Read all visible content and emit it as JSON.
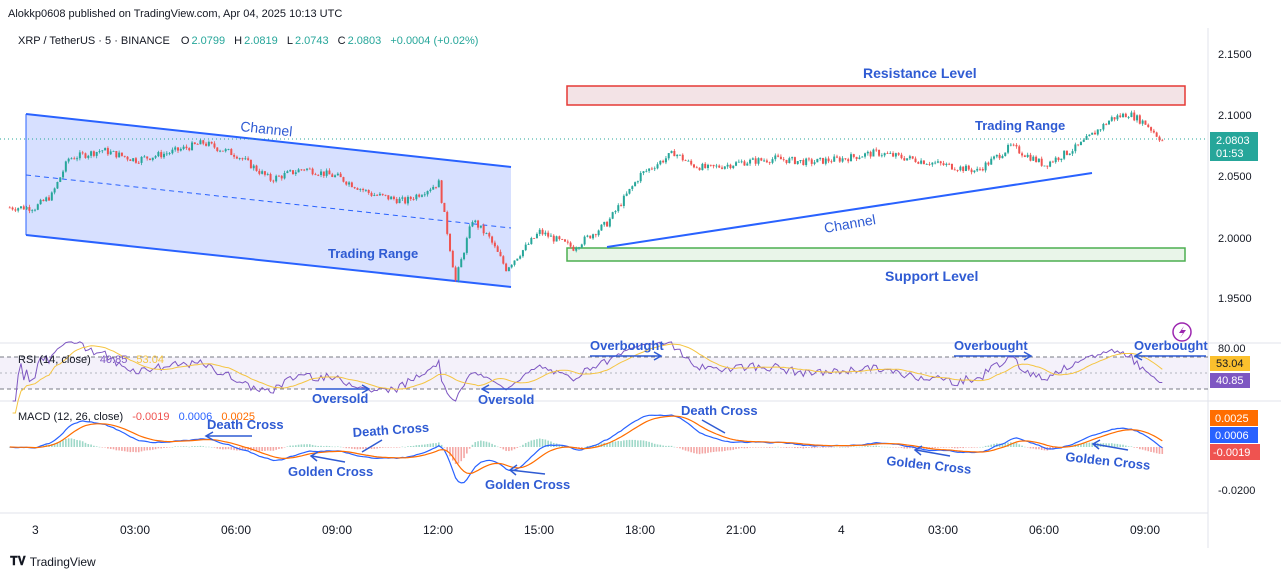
{
  "attribution": "Alokkp0608 published on TradingView.com, Apr 04, 2025 10:13 UTC",
  "symbol_line": {
    "symbol": "XRP / TetherUS · 5 · BINANCE",
    "o_label": "O",
    "o": "2.0799",
    "h_label": "H",
    "h": "2.0819",
    "l_label": "L",
    "l": "2.0743",
    "c_label": "C",
    "c": "2.0803",
    "change": "+0.0004 (+0.02%)"
  },
  "rsi_legend": {
    "label": "RSI (14, close)",
    "v1": "40.85",
    "v2": "53.04"
  },
  "macd_legend": {
    "label": "MACD (12, 26, close)",
    "v1": "-0.0019",
    "v2": "0.0006",
    "v3": "0.0025"
  },
  "brand": "TradingView",
  "colors": {
    "up": "#26a69a",
    "down": "#ef5350",
    "blue": "#2962ff",
    "annot_blue": "#2f5bd3",
    "green": "#4caf50",
    "red": "#e53935"
  },
  "chart_data": [
    {
      "type": "candlestick",
      "title": "XRP / TetherUS · 5 · BINANCE",
      "y_ticks": [
        "2.1500",
        "2.1000",
        "2.0500",
        "2.0000",
        "1.9500"
      ],
      "ylim": [
        1.93,
        2.16
      ],
      "x_ticks": [
        "3",
        "03:00",
        "06:00",
        "09:00",
        "12:00",
        "15:00",
        "18:00",
        "21:00",
        "4",
        "03:00",
        "06:00",
        "09:00"
      ],
      "last_price": "2.0803",
      "countdown": "01:53",
      "approx_close_path": {
        "x_hours": [
          0,
          0.5,
          1,
          2,
          3,
          4,
          5,
          6,
          7,
          8,
          9,
          10,
          11,
          12,
          12.5,
          13,
          13.5,
          14,
          15,
          16,
          17,
          18,
          19,
          19.5,
          20,
          21,
          22,
          23,
          24,
          25,
          26,
          27,
          28,
          29,
          30,
          31,
          32,
          32.5,
          33,
          33.5
        ],
        "close": [
          2.025,
          2.035,
          2.065,
          2.072,
          2.064,
          2.07,
          2.078,
          2.068,
          2.048,
          2.057,
          2.05,
          2.036,
          2.03,
          2.045,
          1.965,
          2.015,
          2.0,
          1.975,
          2.005,
          1.992,
          2.012,
          2.052,
          2.07,
          2.06,
          2.057,
          2.062,
          2.065,
          2.062,
          2.065,
          2.07,
          2.065,
          2.06,
          2.055,
          2.075,
          2.06,
          2.075,
          2.098,
          2.102,
          2.094,
          2.08
        ]
      },
      "annotations": [
        "Channel",
        "Trading Range",
        "Resistance Level",
        "Trading Range",
        "Channel",
        "Support Level"
      ]
    },
    {
      "type": "line",
      "title": "RSI (14, close)",
      "y_ticks": [
        "80.00"
      ],
      "values_shown": [
        "53.04",
        "40.85"
      ],
      "annotations": [
        "Oversold",
        "Oversold",
        "Overbought",
        "Overbought",
        "Overbought"
      ]
    },
    {
      "type": "line",
      "title": "MACD (12, 26, close)",
      "y_ticks": [
        "-0.0200"
      ],
      "values_shown": [
        "0.0025",
        "0.0006",
        "-0.0019"
      ],
      "annotations": [
        "Death Cross",
        "Death Cross",
        "Death Cross",
        "Golden Cross",
        "Golden Cross",
        "Golden Cross",
        "Golden Cross"
      ]
    }
  ]
}
